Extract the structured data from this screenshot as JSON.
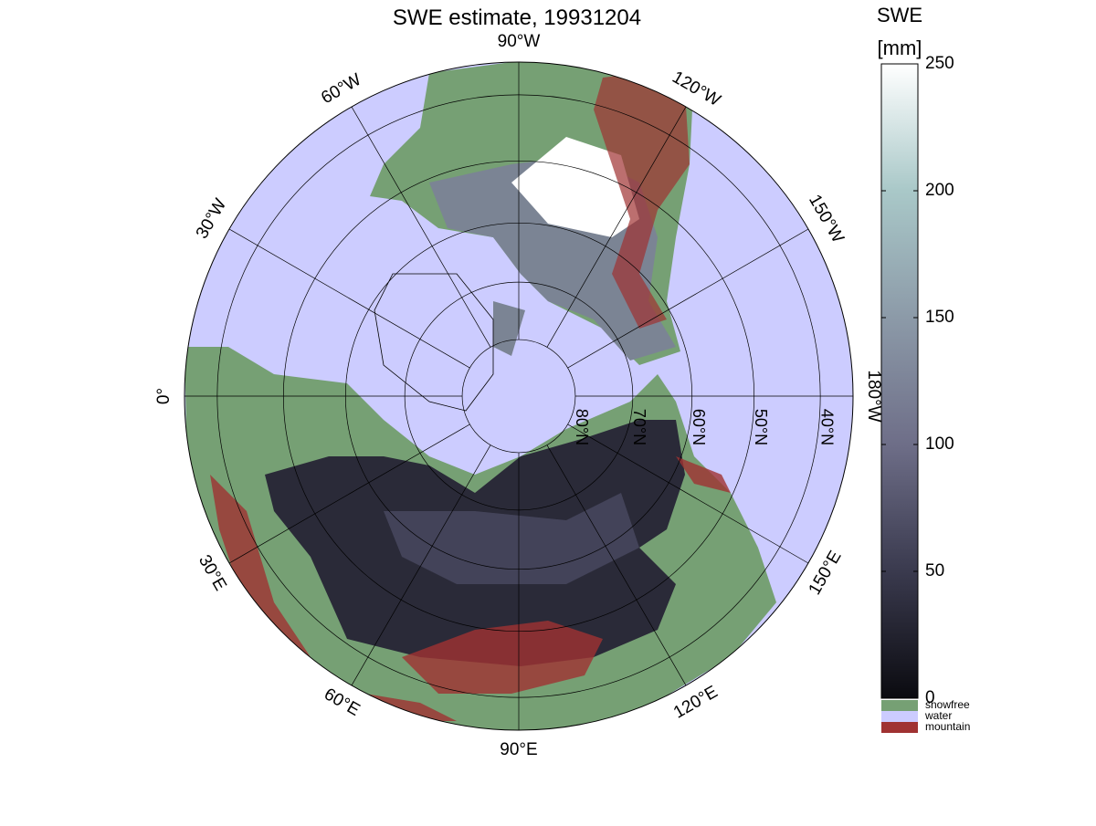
{
  "title": "SWE estimate, 19931204",
  "map": {
    "longitudes": [
      {
        "value": 0,
        "label": "0°"
      },
      {
        "value": -30,
        "label": "30°W"
      },
      {
        "value": -60,
        "label": "60°W"
      },
      {
        "value": -90,
        "label": "90°W"
      },
      {
        "value": -120,
        "label": "120°W"
      },
      {
        "value": -150,
        "label": "150°W"
      },
      {
        "value": 180,
        "label": "180°W"
      },
      {
        "value": 150,
        "label": "150°E"
      },
      {
        "value": 120,
        "label": "120°E"
      },
      {
        "value": 90,
        "label": "90°E"
      },
      {
        "value": 60,
        "label": "60°E"
      },
      {
        "value": 30,
        "label": "30°E"
      }
    ],
    "latitudes": [
      {
        "value": 80,
        "label": "80°N"
      },
      {
        "value": 70,
        "label": "70°N"
      },
      {
        "value": 60,
        "label": "60°N"
      },
      {
        "value": 50,
        "label": "50°N"
      },
      {
        "value": 40,
        "label": "40°N"
      }
    ]
  },
  "colorbar": {
    "title": "SWE",
    "unit": "[mm]",
    "lim": [
      0,
      250
    ],
    "ticks": [
      0,
      50,
      100,
      150,
      200,
      250
    ],
    "colors": [
      "#0b0b10",
      "#3a3a4e",
      "#6e6e88",
      "#8c9aa8",
      "#a9c8c8",
      "#ffffff"
    ]
  },
  "legend": [
    {
      "name": "snowfree",
      "color": "#76a074"
    },
    {
      "name": "water",
      "color": "#ccccff"
    },
    {
      "name": "mountain",
      "color": "#a03232"
    }
  ]
}
